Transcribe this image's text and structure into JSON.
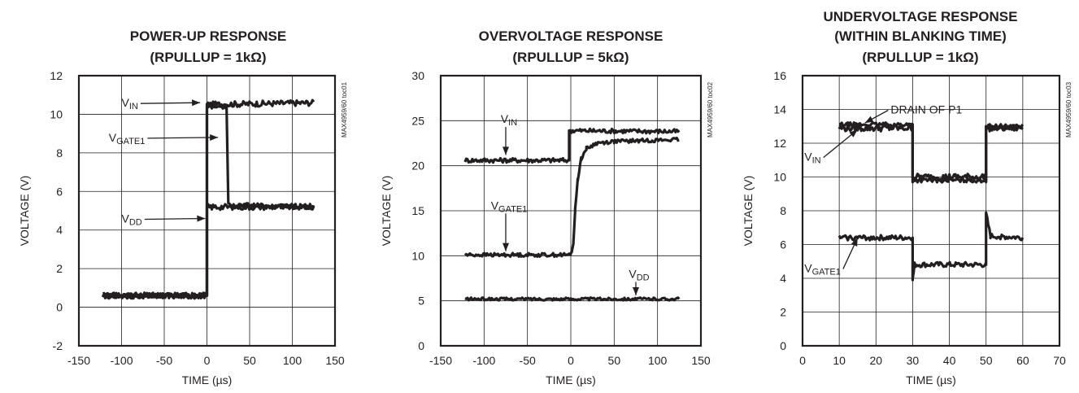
{
  "chart_data": [
    {
      "type": "line",
      "title": [
        "POWER-UP RESPONSE",
        "(RPULLUP = 1kΩ)"
      ],
      "xlabel": "TIME (µs)",
      "ylabel": "VOLTAGE (V)",
      "xlim": [
        -150,
        150
      ],
      "ylim": [
        -2,
        12
      ],
      "xticks": [
        -150,
        -100,
        -50,
        0,
        50,
        100,
        150
      ],
      "yticks": [
        -2,
        0,
        2,
        4,
        6,
        8,
        10,
        12
      ],
      "grid": true,
      "side_code": "MAX4959/60 toc01",
      "annotations": [
        {
          "label": "VIN",
          "text": "V",
          "sub": "IN",
          "tx": -100,
          "ty": 10.6,
          "ax": -8,
          "ay": 10.6
        },
        {
          "label": "VGATE1",
          "text": "V",
          "sub": "GATE1",
          "tx": -115,
          "ty": 8.8,
          "ax": 13,
          "ay": 8.8
        },
        {
          "label": "VDD",
          "text": "V",
          "sub": "DD",
          "tx": -100,
          "ty": 4.6,
          "ax": -2,
          "ay": 4.6
        }
      ],
      "series": [
        {
          "name": "VIN",
          "noise": 0.15,
          "points": [
            [
              -122,
              0.6
            ],
            [
              0,
              0.6
            ],
            [
              0,
              10.5
            ],
            [
              125,
              10.6
            ]
          ]
        },
        {
          "name": "VGATE1",
          "noise": 0.12,
          "points": [
            [
              -122,
              0.6
            ],
            [
              0,
              0.6
            ],
            [
              0,
              10.4
            ],
            [
              23,
              10.4
            ],
            [
              25,
              5.3
            ],
            [
              125,
              5.2
            ]
          ]
        },
        {
          "name": "VDD",
          "noise": 0.15,
          "points": [
            [
              -122,
              0.6
            ],
            [
              0,
              0.6
            ],
            [
              0,
              5.2
            ],
            [
              125,
              5.2
            ]
          ]
        }
      ]
    },
    {
      "type": "line",
      "title": [
        "OVERVOLTAGE RESPONSE",
        "(RPULLUP = 5kΩ)"
      ],
      "xlabel": "TIME (µs)",
      "ylabel": "VOLTAGE (V)",
      "xlim": [
        -150,
        150
      ],
      "ylim": [
        0,
        30
      ],
      "xticks": [
        -150,
        -100,
        -50,
        0,
        50,
        100,
        150
      ],
      "yticks": [
        0,
        5,
        10,
        15,
        20,
        25,
        30
      ],
      "grid": true,
      "side_code": "MAX4959/60 toc02",
      "annotations": [
        {
          "label": "VIN",
          "text": "V",
          "sub": "IN",
          "tx": -75,
          "ty": 25.2,
          "ax": -75,
          "ay": 21.2
        },
        {
          "label": "VGATE1",
          "text": "V",
          "sub": "GATE1",
          "tx": -75,
          "ty": 15.6,
          "ax": -75,
          "ay": 10.5
        },
        {
          "label": "VDD",
          "text": "V",
          "sub": "DD",
          "tx": 75,
          "ty": 8.0,
          "ax": 75,
          "ay": 5.6
        }
      ],
      "series": [
        {
          "name": "VIN",
          "noise": 0.25,
          "points": [
            [
              -122,
              20.6
            ],
            [
              -2,
              20.6
            ],
            [
              -2,
              23.9
            ],
            [
              125,
              23.8
            ]
          ]
        },
        {
          "name": "VGATE1",
          "noise": 0.2,
          "points": [
            [
              -122,
              10.1
            ],
            [
              -2,
              10.1
            ],
            [
              1,
              10.4
            ],
            [
              3,
              11.5
            ],
            [
              5,
              15
            ],
            [
              8,
              18.5
            ],
            [
              12,
              20.8
            ],
            [
              18,
              21.9
            ],
            [
              30,
              22.5
            ],
            [
              50,
              22.7
            ],
            [
              125,
              22.9
            ]
          ]
        },
        {
          "name": "VDD",
          "noise": 0.15,
          "points": [
            [
              -122,
              5.2
            ],
            [
              125,
              5.2
            ]
          ]
        }
      ]
    },
    {
      "type": "line",
      "title": [
        "UNDERVOLTAGE RESPONSE",
        "(WITHIN BLANKING TIME)",
        "(RPULLUP = 1kΩ)"
      ],
      "xlabel": "TIME (µs)",
      "ylabel": "VOLTAGE (V)",
      "xlim": [
        0,
        70
      ],
      "ylim": [
        0,
        16
      ],
      "xticks": [
        0,
        10,
        20,
        30,
        40,
        50,
        60,
        70
      ],
      "yticks": [
        0,
        2,
        4,
        6,
        8,
        10,
        12,
        14,
        16
      ],
      "grid": true,
      "side_code": "MAX4959/60 toc03",
      "annotations": [
        {
          "label": "DRAIN OF P1",
          "text": "DRAIN OF P1",
          "sub": "",
          "tx": 24,
          "ty": 14.0,
          "ax": 17,
          "ay": 13.2
        },
        {
          "label": "VIN",
          "text": "V",
          "sub": "IN",
          "tx": 0.5,
          "ty": 11.2,
          "ax": 15,
          "ay": 12.8
        },
        {
          "label": "VGATE1",
          "text": "V",
          "sub": "GATE1",
          "tx": 0.5,
          "ty": 4.6,
          "ax": 15,
          "ay": 6.4
        }
      ],
      "series": [
        {
          "name": "VIN",
          "noise": 0.2,
          "points": [
            [
              10,
              12.9
            ],
            [
              30,
              12.9
            ],
            [
              30,
              10.0
            ],
            [
              50,
              10.0
            ],
            [
              50,
              12.9
            ],
            [
              60,
              12.9
            ]
          ]
        },
        {
          "name": "DRAIN OF P1",
          "noise": 0.12,
          "points": [
            [
              10,
              13.1
            ],
            [
              30,
              13.1
            ],
            [
              30,
              9.8
            ],
            [
              50,
              9.8
            ],
            [
              50,
              13.0
            ],
            [
              60,
              13.0
            ]
          ]
        },
        {
          "name": "VGATE1",
          "noise": 0.15,
          "points": [
            [
              10,
              6.4
            ],
            [
              30,
              6.4
            ],
            [
              30,
              3.9
            ],
            [
              30.5,
              4.8
            ],
            [
              50,
              4.8
            ],
            [
              50,
              7.8
            ],
            [
              51.2,
              6.5
            ],
            [
              60,
              6.4
            ]
          ]
        }
      ]
    }
  ]
}
